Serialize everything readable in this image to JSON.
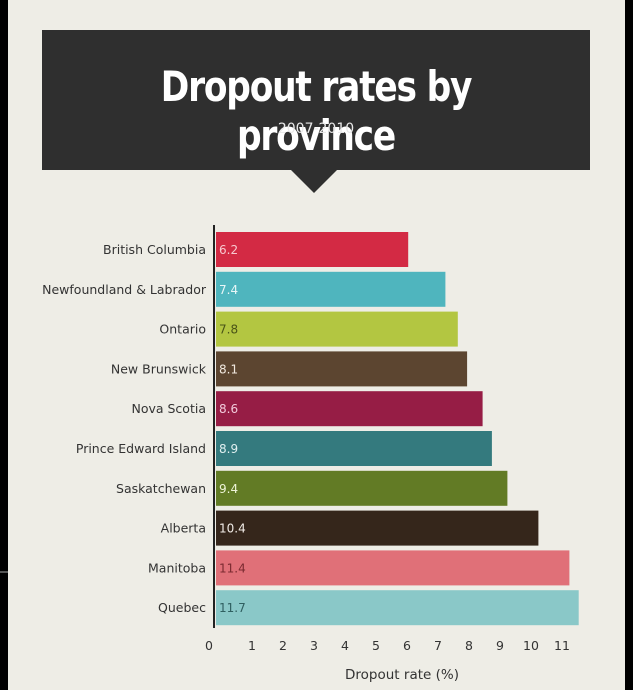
{
  "chart_data": {
    "type": "bar",
    "orientation": "horizontal",
    "title": "Dropout rates by province",
    "subtitle": "2007-2010",
    "xlabel": "Dropout rate (%)",
    "ylabel": "",
    "xlim": [
      0,
      11.7
    ],
    "xticks": [
      0,
      1,
      2,
      3,
      4,
      5,
      6,
      7,
      8,
      9,
      10,
      11
    ],
    "grid": false,
    "categories": [
      "British Columbia",
      "Newfoundland & Labrador",
      "Ontario",
      "New Brunswick",
      "Nova Scotia",
      "Prince Edward Island",
      "Saskatchewan",
      "Alberta",
      "Manitoba",
      "Quebec"
    ],
    "values": [
      6.2,
      7.4,
      7.8,
      8.1,
      8.6,
      8.9,
      9.4,
      10.4,
      11.4,
      11.7
    ],
    "value_labels": [
      "6.2",
      "7.4",
      "7.8",
      "8.1",
      "8.6",
      "8.9",
      "9.4",
      "10.4",
      "11.4",
      "11.7"
    ],
    "colors": [
      "#d32a44",
      "#4fb5be",
      "#b3c641",
      "#5c4530",
      "#961d45",
      "#347a7e",
      "#627b25",
      "#35261b",
      "#e07078",
      "#8ac8c8"
    ],
    "value_label_colors": [
      "#f7c9cf",
      "#e8f6f7",
      "#4a5418",
      "#f0e8de",
      "#f2cadb",
      "#e0f0f0",
      "#eef3d8",
      "#f0ebe6",
      "#7a2a30",
      "#2f5f60"
    ]
  }
}
